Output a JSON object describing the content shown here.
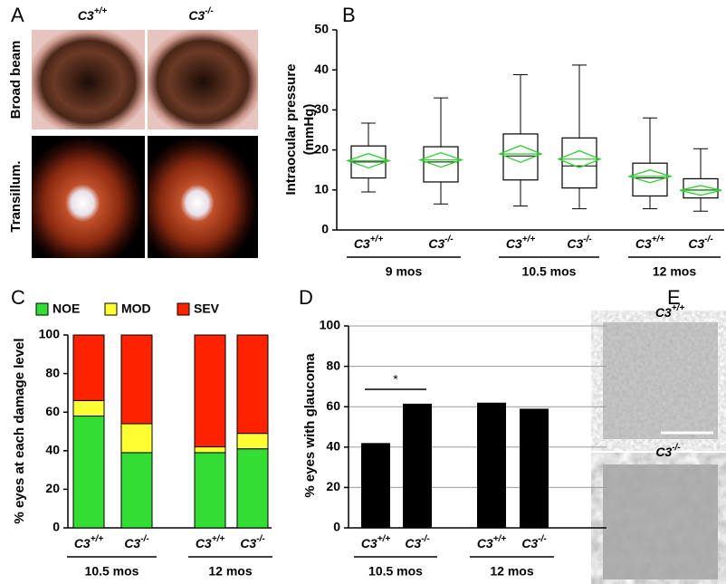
{
  "panel_a": {
    "label": "A",
    "columns": [
      "C3+/+",
      "C3-/-"
    ],
    "rows": [
      "Broad beam",
      "Transillum."
    ]
  },
  "panel_e": {
    "label": "E",
    "captions": [
      "C3+/+",
      "C3-/-"
    ]
  },
  "chart_data": [
    {
      "type": "box",
      "panel": "B",
      "ylabel": [
        "Intraocular pressure",
        "(mmHg)"
      ],
      "categories": [
        "C3+/+",
        "C3-/-",
        "C3+/+",
        "C3-/-",
        "C3+/+",
        "C3-/-"
      ],
      "groups": [
        "9 mos",
        "10.5 mos",
        "12 mos"
      ],
      "min": [
        9.5,
        6.5,
        6,
        5.3,
        5.3,
        4.7
      ],
      "q1": [
        13,
        12,
        12.5,
        10.5,
        8.5,
        8
      ],
      "median": [
        17,
        17,
        18.5,
        16,
        13,
        10
      ],
      "q3": [
        21,
        20.8,
        24,
        23,
        16.7,
        12.8
      ],
      "max": [
        26.7,
        33,
        38.8,
        41.2,
        28,
        20.3
      ],
      "mean": [
        17.3,
        17.5,
        19,
        17.7,
        13.4,
        9.9
      ],
      "ci_low": [
        15.5,
        15.7,
        16.9,
        15.6,
        11.8,
        8.7
      ],
      "ci_high": [
        19.1,
        19.3,
        21.1,
        19.8,
        15,
        11.1
      ],
      "color": "#000000",
      "mean_color": "#33cc33",
      "ylim": [
        0,
        50
      ],
      "yticks": [
        0,
        10,
        20,
        30,
        40,
        50
      ]
    },
    {
      "type": "stacked_bar",
      "panel": "C",
      "ylabel": "% eyes at each damage level",
      "categories": [
        "C3+/+",
        "C3-/-",
        "C3+/+",
        "C3-/-"
      ],
      "groups": [
        "10.5 mos",
        "12 mos"
      ],
      "series": [
        {
          "name": "NOE",
          "color": "#33dd33",
          "values": [
            58,
            39,
            39,
            41
          ]
        },
        {
          "name": "MOD",
          "color": "#ffff33",
          "values": [
            8,
            15,
            3,
            8
          ]
        },
        {
          "name": "SEV",
          "color": "#ff2200",
          "values": [
            34,
            46,
            58,
            51
          ]
        }
      ],
      "ylim": [
        0,
        100
      ],
      "yticks": [
        0,
        20,
        40,
        60,
        80,
        100
      ]
    },
    {
      "type": "bar",
      "panel": "D",
      "ylabel": "% eyes with glaucoma",
      "categories": [
        "C3+/+",
        "C3-/-",
        "C3+/+",
        "C3-/-"
      ],
      "groups": [
        "10.5 mos",
        "12 mos"
      ],
      "values": [
        42,
        61.5,
        62,
        59
      ],
      "color": "#000000",
      "ylim": [
        0,
        100
      ],
      "yticks": [
        0,
        20,
        40,
        60,
        80,
        100
      ],
      "grid": true,
      "annotation": "*"
    }
  ]
}
